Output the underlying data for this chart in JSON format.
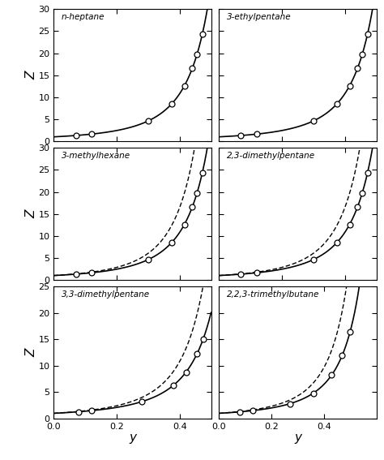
{
  "panels": [
    {
      "title": "n-heptane",
      "row": 0,
      "col": 0,
      "ylim": [
        0,
        30
      ],
      "xlim": [
        0,
        0.5
      ],
      "xticks": [
        0,
        0.2,
        0.4
      ],
      "yticks": [
        0,
        5,
        10,
        15,
        20,
        25,
        30
      ],
      "solid_k": 3.57,
      "dashed_k": null,
      "data_y": [
        0.07,
        0.12,
        0.3,
        0.375,
        0.415,
        0.44,
        0.455,
        0.472
      ],
      "has_dashed": false
    },
    {
      "title": "3-ethylpentane",
      "row": 0,
      "col": 1,
      "ylim": [
        0,
        30
      ],
      "xlim": [
        0,
        0.5
      ],
      "xticks": [
        0,
        0.2,
        0.4
      ],
      "yticks": [
        0,
        5,
        10,
        15,
        20,
        25,
        30
      ],
      "solid_k": 3.57,
      "dashed_k": null,
      "data_y": [
        0.07,
        0.12,
        0.3,
        0.375,
        0.415,
        0.44,
        0.455,
        0.472
      ],
      "has_dashed": false
    },
    {
      "title": "3-methylhexane",
      "row": 1,
      "col": 0,
      "ylim": [
        0,
        30
      ],
      "xlim": [
        0,
        0.5
      ],
      "xticks": [
        0,
        0.2,
        0.4
      ],
      "yticks": [
        0,
        5,
        10,
        15,
        20,
        25,
        30
      ],
      "solid_k": 3.57,
      "dashed_k": 4.2,
      "data_y": [
        0.07,
        0.12,
        0.3,
        0.375,
        0.415,
        0.44,
        0.455,
        0.472
      ],
      "has_dashed": true
    },
    {
      "title": "2,3-dimethylpentane",
      "row": 1,
      "col": 1,
      "ylim": [
        0,
        30
      ],
      "xlim": [
        0,
        0.5
      ],
      "xticks": [
        0,
        0.2,
        0.4
      ],
      "yticks": [
        0,
        5,
        10,
        15,
        20,
        25,
        30
      ],
      "solid_k": 3.57,
      "dashed_k": 4.2,
      "data_y": [
        0.07,
        0.12,
        0.3,
        0.375,
        0.415,
        0.44,
        0.455,
        0.472
      ],
      "has_dashed": true
    },
    {
      "title": "3,3-dimethylpentane",
      "row": 2,
      "col": 0,
      "ylim": [
        0,
        25
      ],
      "xlim": [
        0,
        0.5
      ],
      "xticks": [
        0,
        0.2,
        0.4
      ],
      "yticks": [
        0,
        5,
        10,
        15,
        20,
        25
      ],
      "solid_k": 3.0,
      "dashed_k": 3.57,
      "data_y": [
        0.08,
        0.12,
        0.28,
        0.38,
        0.42,
        0.455,
        0.475
      ],
      "has_dashed": true
    },
    {
      "title": "2,2,3-trimethylbutane",
      "row": 2,
      "col": 1,
      "ylim": [
        0,
        25
      ],
      "xlim": [
        0,
        0.6
      ],
      "xticks": [
        0,
        0.2,
        0.4
      ],
      "yticks": [
        0,
        5,
        10,
        15,
        20,
        25
      ],
      "solid_k": 2.8,
      "dashed_k": 3.4,
      "data_y": [
        0.08,
        0.13,
        0.27,
        0.36,
        0.43,
        0.47,
        0.5
      ],
      "has_dashed": true
    }
  ],
  "ylabel": "Z",
  "xlabel": "y",
  "bg_color": "#ffffff"
}
